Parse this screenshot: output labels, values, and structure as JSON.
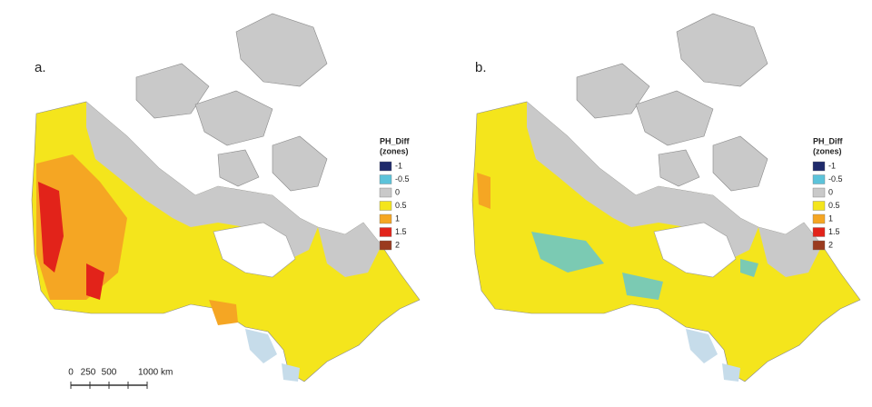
{
  "panels": [
    {
      "label": "a.",
      "legend": {
        "title": "PH_Diff",
        "subtitle": "(zones)",
        "items": [
          {
            "label": "-1",
            "color": "#1f2a6b"
          },
          {
            "label": "-0.5",
            "color": "#5cc3da"
          },
          {
            "label": "0",
            "color": "#c9c9c9"
          },
          {
            "label": "0.5",
            "color": "#f4e51c"
          },
          {
            "label": "1",
            "color": "#f5a623"
          },
          {
            "label": "1.5",
            "color": "#e2231a"
          },
          {
            "label": "2",
            "color": "#9a3b1f"
          }
        ]
      }
    },
    {
      "label": "b.",
      "legend": {
        "title": "PH_Diff",
        "subtitle": "(zones)",
        "items": [
          {
            "label": "-1",
            "color": "#1f2a6b"
          },
          {
            "label": "-0.5",
            "color": "#5cc3da"
          },
          {
            "label": "0",
            "color": "#c9c9c9"
          },
          {
            "label": "0.5",
            "color": "#f4e51c"
          },
          {
            "label": "1",
            "color": "#f5a623"
          },
          {
            "label": "1.5",
            "color": "#e2231a"
          },
          {
            "label": "2",
            "color": "#9a3b1f"
          }
        ]
      }
    }
  ],
  "scale_bar": {
    "labels": [
      "0",
      "250",
      "500",
      "1000 km"
    ]
  }
}
